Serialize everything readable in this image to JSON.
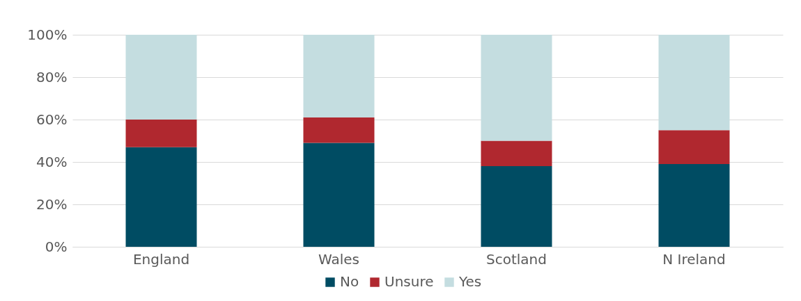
{
  "chart_data": {
    "type": "bar",
    "stacked": true,
    "categories": [
      "England",
      "Wales",
      "Scotland",
      "N Ireland"
    ],
    "series": [
      {
        "name": "No",
        "color": "#004c63",
        "values": [
          47,
          49,
          38,
          39
        ]
      },
      {
        "name": "Unsure",
        "color": "#b0282f",
        "values": [
          13,
          12,
          12,
          16
        ]
      },
      {
        "name": "Yes",
        "color": "#c4dde0",
        "values": [
          40,
          39,
          50,
          45
        ]
      }
    ],
    "ylim": [
      0,
      100
    ],
    "yticks": [
      {
        "value": 0,
        "label": "0%"
      },
      {
        "value": 20,
        "label": "20%"
      },
      {
        "value": 40,
        "label": "40%"
      },
      {
        "value": 60,
        "label": "60%"
      },
      {
        "value": 80,
        "label": "80%"
      },
      {
        "value": 100,
        "label": "100%"
      }
    ],
    "grid": "y",
    "legend": "bottom"
  }
}
